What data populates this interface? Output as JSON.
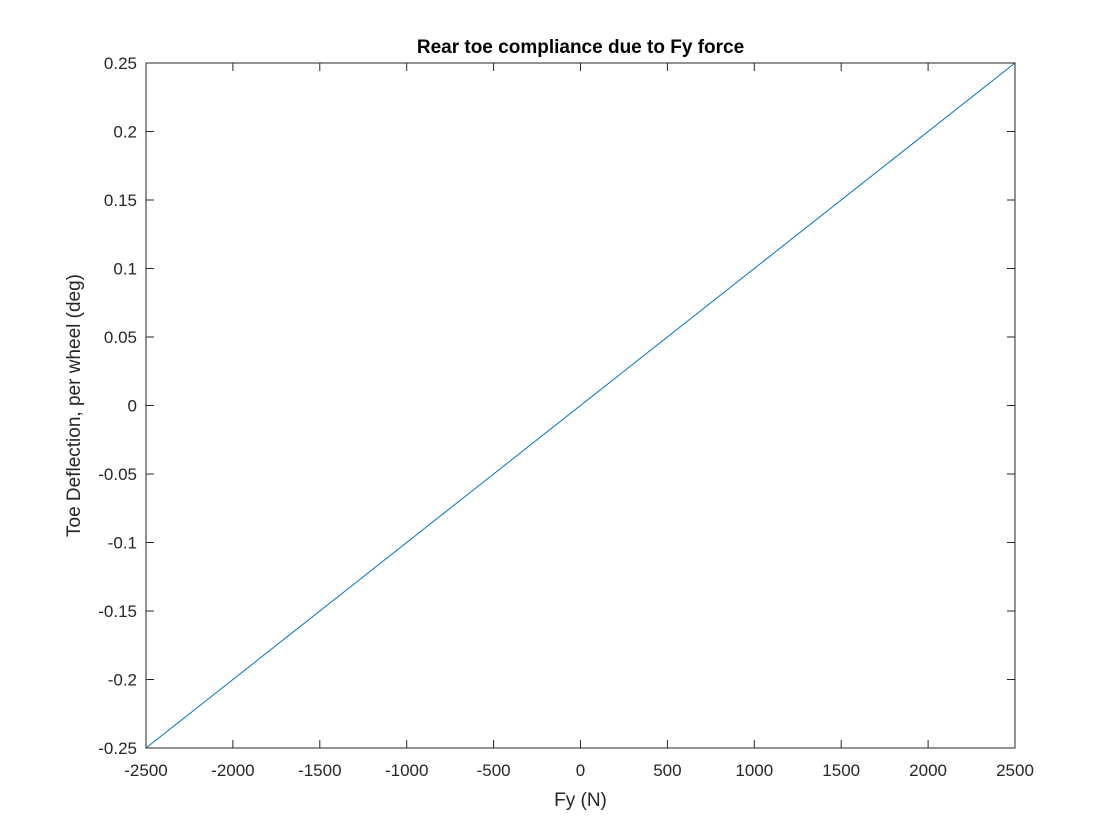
{
  "chart_data": {
    "type": "line",
    "title": "Rear toe compliance due to Fy force",
    "xlabel": "Fy (N)",
    "ylabel": "Toe Deflection, per wheel (deg)",
    "xlim": [
      -2500,
      2500
    ],
    "ylim": [
      -0.25,
      0.25
    ],
    "xticks": [
      -2500,
      -2000,
      -1500,
      -1000,
      -500,
      0,
      500,
      1000,
      1500,
      2000,
      2500
    ],
    "xtick_labels": [
      "-2500",
      "-2000",
      "-1500",
      "-1000",
      "-500",
      "0",
      "500",
      "1000",
      "1500",
      "2000",
      "2500"
    ],
    "yticks": [
      -0.25,
      -0.2,
      -0.15,
      -0.1,
      -0.05,
      0,
      0.05,
      0.1,
      0.15,
      0.2,
      0.25
    ],
    "ytick_labels": [
      "-0.25",
      "-0.2",
      "-0.15",
      "-0.1",
      "-0.05",
      "0",
      "0.05",
      "0.1",
      "0.15",
      "0.2",
      "0.25"
    ],
    "grid": false,
    "series": [
      {
        "color": "#0072BD",
        "x": [
          -2500,
          2500
        ],
        "y": [
          -0.25,
          0.25
        ]
      }
    ]
  }
}
